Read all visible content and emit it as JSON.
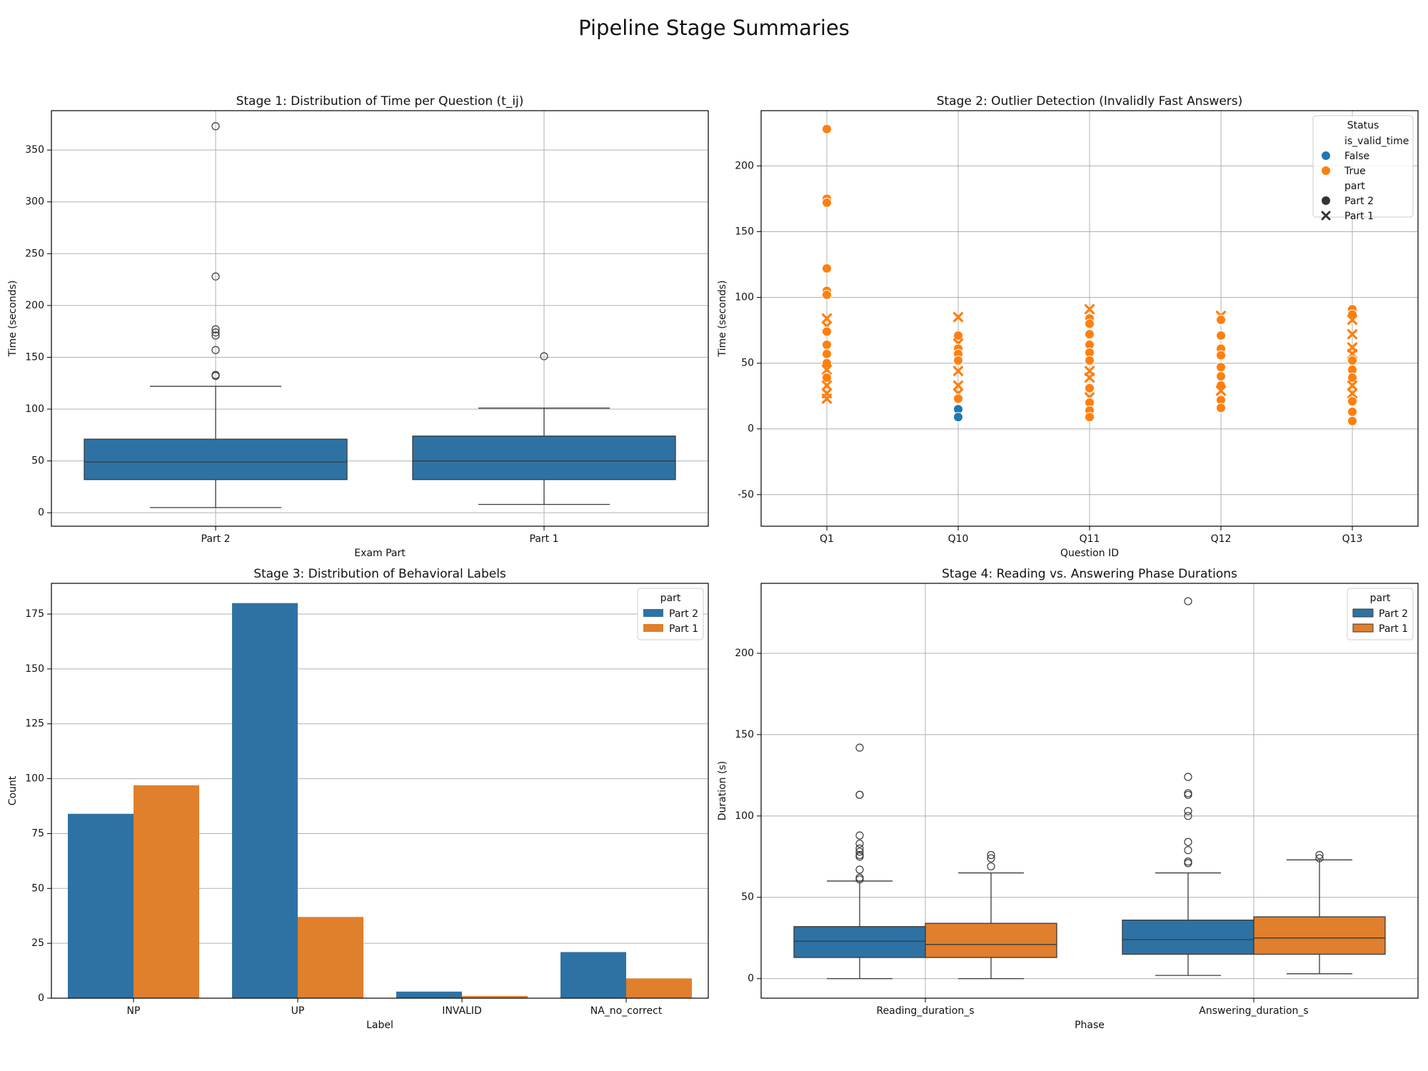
{
  "figure": {
    "title": "Pipeline Stage Summaries"
  },
  "colors": {
    "blue": "#2e72a4",
    "orange": "#e07f2c",
    "scatter_blue": "#1f77b4",
    "scatter_orange": "#ff7f0e",
    "grid": "#b0b0b0",
    "axis": "#000000"
  },
  "chart_data": [
    {
      "id": "stage1",
      "type": "box",
      "title": "Stage 1: Distribution of Time per Question (t_ij)",
      "xlabel": "Exam Part",
      "ylabel": "Time (seconds)",
      "ylim": [
        -13,
        388
      ],
      "yticks": [
        0,
        50,
        100,
        150,
        200,
        250,
        300,
        350
      ],
      "grid": true,
      "categories": [
        "Part 2",
        "Part 1"
      ],
      "boxes": [
        {
          "category": "Part 2",
          "color": "blue",
          "whisker_low": 5,
          "q1": 32,
          "median": 49,
          "q3": 71,
          "whisker_high": 122,
          "outliers": [
            132,
            133,
            157,
            171,
            174,
            177,
            228,
            373
          ]
        },
        {
          "category": "Part 1",
          "color": "blue",
          "whisker_low": 8,
          "q1": 32,
          "median": 50,
          "q3": 74,
          "whisker_high": 101,
          "outliers": [
            151
          ]
        }
      ]
    },
    {
      "id": "stage2",
      "type": "scatter",
      "title": "Stage 2: Outlier Detection (Invalidly Fast Answers)",
      "xlabel": "Question ID",
      "ylabel": "Time (seconds)",
      "ylim": [
        -74,
        242
      ],
      "yticks": [
        -50,
        0,
        50,
        100,
        150,
        200
      ],
      "grid": true,
      "categories": [
        "Q1",
        "Q10",
        "Q11",
        "Q12",
        "Q13"
      ],
      "legend": {
        "title": "Status",
        "position": "top-right",
        "groups": [
          {
            "heading": "is_valid_time",
            "entries": [
              {
                "label": "False",
                "marker": "circle",
                "color": "scatter_blue"
              },
              {
                "label": "True",
                "marker": "circle",
                "color": "scatter_orange"
              }
            ]
          },
          {
            "heading": "part",
            "entries": [
              {
                "label": "Part 2",
                "marker": "circle",
                "color": "#333333"
              },
              {
                "label": "Part 1",
                "marker": "x",
                "color": "#333333"
              }
            ]
          }
        ]
      },
      "points": [
        {
          "x": "Q1",
          "y": 228,
          "valid": true,
          "part": "Part 2"
        },
        {
          "x": "Q1",
          "y": 175,
          "valid": true,
          "part": "Part 2"
        },
        {
          "x": "Q1",
          "y": 172,
          "valid": true,
          "part": "Part 2"
        },
        {
          "x": "Q1",
          "y": 122,
          "valid": true,
          "part": "Part 2"
        },
        {
          "x": "Q1",
          "y": 105,
          "valid": true,
          "part": "Part 2"
        },
        {
          "x": "Q1",
          "y": 102,
          "valid": true,
          "part": "Part 2"
        },
        {
          "x": "Q1",
          "y": 84,
          "valid": true,
          "part": "Part 1"
        },
        {
          "x": "Q1",
          "y": 78,
          "valid": true,
          "part": "Part 1"
        },
        {
          "x": "Q1",
          "y": 74,
          "valid": true,
          "part": "Part 2"
        },
        {
          "x": "Q1",
          "y": 64,
          "valid": true,
          "part": "Part 2"
        },
        {
          "x": "Q1",
          "y": 57,
          "valid": true,
          "part": "Part 2"
        },
        {
          "x": "Q1",
          "y": 50,
          "valid": true,
          "part": "Part 2"
        },
        {
          "x": "Q1",
          "y": 45,
          "valid": true,
          "part": "Part 1"
        },
        {
          "x": "Q1",
          "y": 39,
          "valid": true,
          "part": "Part 2"
        },
        {
          "x": "Q1",
          "y": 33,
          "valid": true,
          "part": "Part 1"
        },
        {
          "x": "Q1",
          "y": 27,
          "valid": true,
          "part": "Part 1"
        },
        {
          "x": "Q1",
          "y": 23,
          "valid": true,
          "part": "Part 1"
        },
        {
          "x": "Q10",
          "y": 85,
          "valid": true,
          "part": "Part 1"
        },
        {
          "x": "Q10",
          "y": 71,
          "valid": true,
          "part": "Part 2"
        },
        {
          "x": "Q10",
          "y": 65,
          "valid": true,
          "part": "Part 1"
        },
        {
          "x": "Q10",
          "y": 61,
          "valid": true,
          "part": "Part 2"
        },
        {
          "x": "Q10",
          "y": 57,
          "valid": true,
          "part": "Part 2"
        },
        {
          "x": "Q10",
          "y": 52,
          "valid": true,
          "part": "Part 2"
        },
        {
          "x": "Q10",
          "y": 44,
          "valid": true,
          "part": "Part 1"
        },
        {
          "x": "Q10",
          "y": 33,
          "valid": true,
          "part": "Part 1"
        },
        {
          "x": "Q10",
          "y": 27,
          "valid": true,
          "part": "Part 1"
        },
        {
          "x": "Q10",
          "y": 23,
          "valid": true,
          "part": "Part 2"
        },
        {
          "x": "Q10",
          "y": 15,
          "valid": false,
          "part": "Part 2"
        },
        {
          "x": "Q10",
          "y": 9,
          "valid": false,
          "part": "Part 2"
        },
        {
          "x": "Q11",
          "y": 91,
          "valid": true,
          "part": "Part 1"
        },
        {
          "x": "Q11",
          "y": 84,
          "valid": true,
          "part": "Part 2"
        },
        {
          "x": "Q11",
          "y": 80,
          "valid": true,
          "part": "Part 2"
        },
        {
          "x": "Q11",
          "y": 72,
          "valid": true,
          "part": "Part 2"
        },
        {
          "x": "Q11",
          "y": 64,
          "valid": true,
          "part": "Part 2"
        },
        {
          "x": "Q11",
          "y": 58,
          "valid": true,
          "part": "Part 2"
        },
        {
          "x": "Q11",
          "y": 52,
          "valid": true,
          "part": "Part 2"
        },
        {
          "x": "Q11",
          "y": 44,
          "valid": true,
          "part": "Part 1"
        },
        {
          "x": "Q11",
          "y": 39,
          "valid": true,
          "part": "Part 1"
        },
        {
          "x": "Q11",
          "y": 31,
          "valid": true,
          "part": "Part 2"
        },
        {
          "x": "Q11",
          "y": 24,
          "valid": true,
          "part": "Part 1"
        },
        {
          "x": "Q11",
          "y": 20,
          "valid": true,
          "part": "Part 2"
        },
        {
          "x": "Q11",
          "y": 14,
          "valid": true,
          "part": "Part 2"
        },
        {
          "x": "Q11",
          "y": 9,
          "valid": true,
          "part": "Part 2"
        },
        {
          "x": "Q12",
          "y": 86,
          "valid": true,
          "part": "Part 1"
        },
        {
          "x": "Q12",
          "y": 83,
          "valid": true,
          "part": "Part 2"
        },
        {
          "x": "Q12",
          "y": 71,
          "valid": true,
          "part": "Part 2"
        },
        {
          "x": "Q12",
          "y": 61,
          "valid": true,
          "part": "Part 2"
        },
        {
          "x": "Q12",
          "y": 56,
          "valid": true,
          "part": "Part 2"
        },
        {
          "x": "Q12",
          "y": 47,
          "valid": true,
          "part": "Part 2"
        },
        {
          "x": "Q12",
          "y": 40,
          "valid": true,
          "part": "Part 2"
        },
        {
          "x": "Q12",
          "y": 33,
          "valid": true,
          "part": "Part 2"
        },
        {
          "x": "Q12",
          "y": 29,
          "valid": true,
          "part": "Part 1"
        },
        {
          "x": "Q12",
          "y": 22,
          "valid": true,
          "part": "Part 2"
        },
        {
          "x": "Q12",
          "y": 16,
          "valid": true,
          "part": "Part 2"
        },
        {
          "x": "Q13",
          "y": 91,
          "valid": true,
          "part": "Part 2"
        },
        {
          "x": "Q13",
          "y": 87,
          "valid": true,
          "part": "Part 2"
        },
        {
          "x": "Q13",
          "y": 83,
          "valid": true,
          "part": "Part 1"
        },
        {
          "x": "Q13",
          "y": 72,
          "valid": true,
          "part": "Part 1"
        },
        {
          "x": "Q13",
          "y": 62,
          "valid": true,
          "part": "Part 1"
        },
        {
          "x": "Q13",
          "y": 57,
          "valid": true,
          "part": "Part 1"
        },
        {
          "x": "Q13",
          "y": 52,
          "valid": true,
          "part": "Part 2"
        },
        {
          "x": "Q13",
          "y": 45,
          "valid": true,
          "part": "Part 2"
        },
        {
          "x": "Q13",
          "y": 39,
          "valid": true,
          "part": "Part 2"
        },
        {
          "x": "Q13",
          "y": 33,
          "valid": true,
          "part": "Part 1"
        },
        {
          "x": "Q13",
          "y": 27,
          "valid": true,
          "part": "Part 1"
        },
        {
          "x": "Q13",
          "y": 21,
          "valid": true,
          "part": "Part 2"
        },
        {
          "x": "Q13",
          "y": 13,
          "valid": true,
          "part": "Part 2"
        },
        {
          "x": "Q13",
          "y": 6,
          "valid": true,
          "part": "Part 2"
        }
      ]
    },
    {
      "id": "stage3",
      "type": "bar",
      "title": "Stage 3: Distribution of Behavioral Labels",
      "xlabel": "Label",
      "ylabel": "Count",
      "ylim": [
        0,
        189
      ],
      "yticks": [
        0,
        25,
        50,
        75,
        100,
        125,
        150,
        175
      ],
      "grid": true,
      "categories": [
        "NP",
        "UP",
        "INVALID",
        "NA_no_correct"
      ],
      "legend": {
        "title": "part",
        "position": "top-right"
      },
      "series": [
        {
          "name": "Part 2",
          "color": "blue",
          "values": [
            84,
            180,
            3,
            21
          ]
        },
        {
          "name": "Part 1",
          "color": "orange",
          "values": [
            97,
            37,
            1,
            9
          ]
        }
      ]
    },
    {
      "id": "stage4",
      "type": "box",
      "title": "Stage 4: Reading vs. Answering Phase Durations",
      "xlabel": "Phase",
      "ylabel": "Duration (s)",
      "ylim": [
        -12,
        243
      ],
      "yticks": [
        0,
        50,
        100,
        150,
        200
      ],
      "grid": true,
      "categories": [
        "Reading_duration_s",
        "Answering_duration_s"
      ],
      "legend": {
        "title": "part",
        "position": "top-right",
        "entries": [
          {
            "label": "Part 2",
            "color": "blue"
          },
          {
            "label": "Part 1",
            "color": "orange"
          }
        ]
      },
      "boxes": [
        {
          "category": "Reading_duration_s",
          "series": "Part 2",
          "color": "blue",
          "whisker_low": 0,
          "q1": 13,
          "median": 23,
          "q3": 32,
          "whisker_high": 60,
          "outliers": [
            61,
            62,
            67,
            75,
            76,
            78,
            80,
            83,
            88,
            113,
            113,
            142
          ]
        },
        {
          "category": "Reading_duration_s",
          "series": "Part 1",
          "color": "orange",
          "whisker_low": 0,
          "q1": 13,
          "median": 21,
          "q3": 34,
          "whisker_high": 65,
          "outliers": [
            69,
            74,
            76
          ]
        },
        {
          "category": "Answering_duration_s",
          "series": "Part 2",
          "color": "blue",
          "whisker_low": 2,
          "q1": 15,
          "median": 24,
          "q3": 36,
          "whisker_high": 65,
          "outliers": [
            71,
            72,
            79,
            84,
            100,
            103,
            113,
            114,
            124,
            232
          ]
        },
        {
          "category": "Answering_duration_s",
          "series": "Part 1",
          "color": "orange",
          "whisker_low": 3,
          "q1": 15,
          "median": 25,
          "q3": 38,
          "whisker_high": 73,
          "outliers": [
            74,
            76
          ]
        }
      ]
    }
  ]
}
